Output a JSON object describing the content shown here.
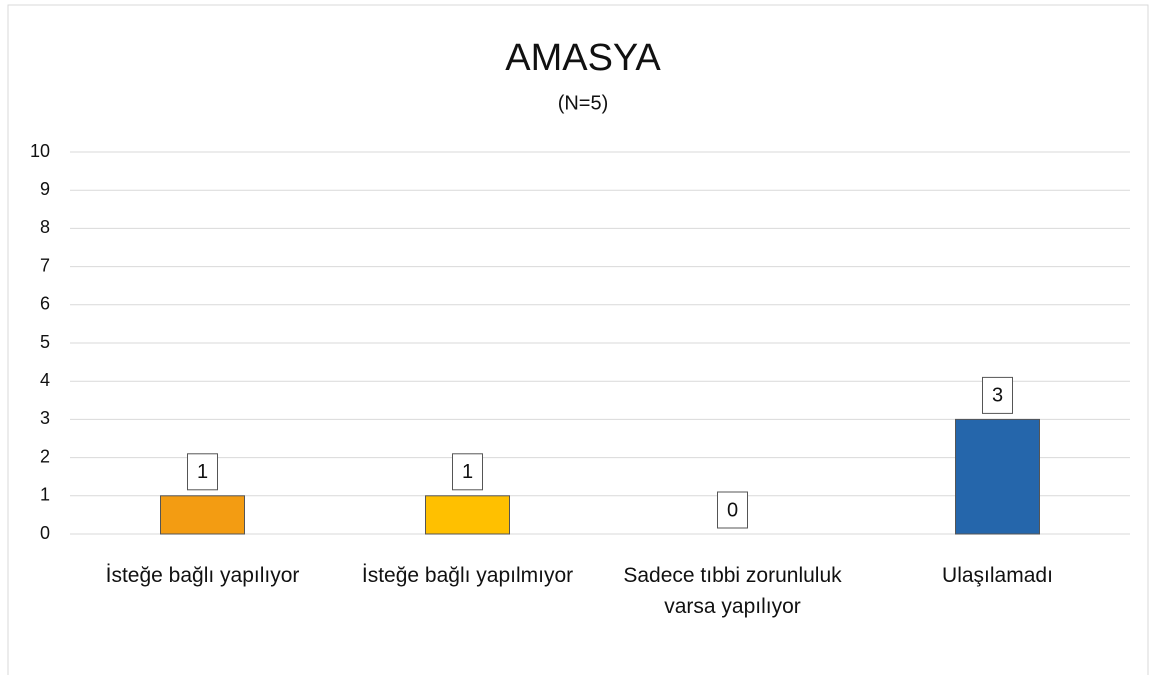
{
  "chart_data": {
    "type": "bar",
    "title": "AMASYA",
    "subtitle": "(N=5)",
    "categories": [
      "İsteğe bağlı yapılıyor",
      "İsteğe bağlı yapılmıyor",
      "Sadece tıbbi zorunluluk varsa yapılıyor",
      "Ulaşılamadı"
    ],
    "values": [
      1,
      1,
      0,
      3
    ],
    "colors": [
      "#F39C12",
      "#FFC000",
      "#A5A5A5",
      "#2566AB"
    ],
    "ylim": [
      0,
      10
    ],
    "yticks": [
      0,
      1,
      2,
      3,
      4,
      5,
      6,
      7,
      8,
      9,
      10
    ],
    "grid": true
  }
}
